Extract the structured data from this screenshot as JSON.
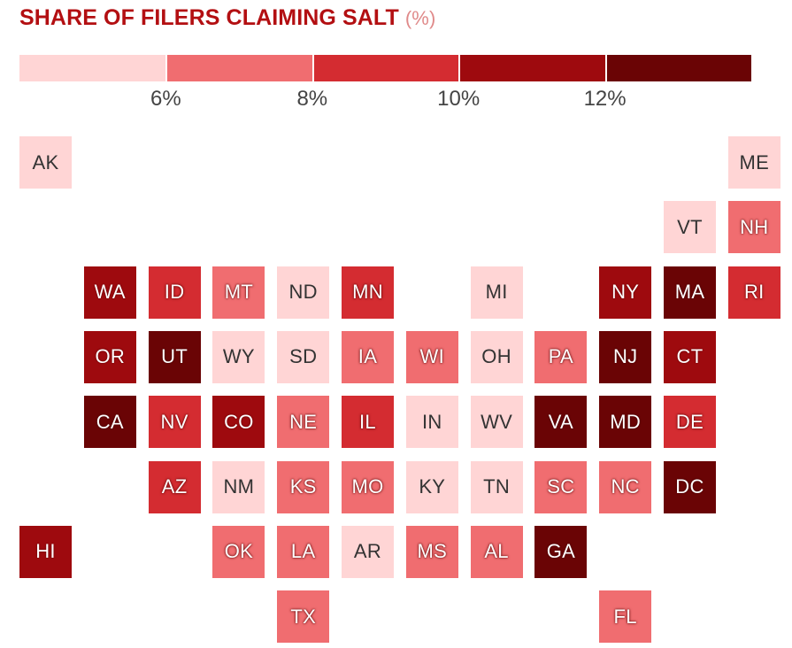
{
  "header": {
    "title": "SHARE OF FILERS CLAIMING SALT",
    "unit": "(%)"
  },
  "legend": {
    "colors": [
      "#ffd5d5",
      "#f06d70",
      "#d42c31",
      "#9e0a0e",
      "#6a0405"
    ],
    "ticks": [
      "6%",
      "8%",
      "10%",
      "12%"
    ]
  },
  "chart_data": {
    "type": "tile-map",
    "title": "SHARE OF FILERS CLAIMING SALT",
    "unit": "(%)",
    "bins": [
      {
        "label": "under 6%",
        "color": "#ffd5d5"
      },
      {
        "label": "6% to 8%",
        "color": "#f06d70"
      },
      {
        "label": "8% to 10%",
        "color": "#d42c31"
      },
      {
        "label": "10% to 12%",
        "color": "#9e0a0e"
      },
      {
        "label": "12% and above",
        "color": "#6a0405"
      }
    ],
    "states": [
      {
        "code": "AK",
        "bin": 0
      },
      {
        "code": "ME",
        "bin": 0
      },
      {
        "code": "VT",
        "bin": 0
      },
      {
        "code": "NH",
        "bin": 1
      },
      {
        "code": "WA",
        "bin": 3
      },
      {
        "code": "ID",
        "bin": 2
      },
      {
        "code": "MT",
        "bin": 1
      },
      {
        "code": "ND",
        "bin": 0
      },
      {
        "code": "MN",
        "bin": 2
      },
      {
        "code": "MI",
        "bin": 0
      },
      {
        "code": "NY",
        "bin": 3
      },
      {
        "code": "MA",
        "bin": 4
      },
      {
        "code": "RI",
        "bin": 2
      },
      {
        "code": "OR",
        "bin": 3
      },
      {
        "code": "UT",
        "bin": 4
      },
      {
        "code": "WY",
        "bin": 0
      },
      {
        "code": "SD",
        "bin": 0
      },
      {
        "code": "IA",
        "bin": 1
      },
      {
        "code": "WI",
        "bin": 1
      },
      {
        "code": "OH",
        "bin": 0
      },
      {
        "code": "PA",
        "bin": 1
      },
      {
        "code": "NJ",
        "bin": 4
      },
      {
        "code": "CT",
        "bin": 3
      },
      {
        "code": "CA",
        "bin": 4
      },
      {
        "code": "NV",
        "bin": 2
      },
      {
        "code": "CO",
        "bin": 3
      },
      {
        "code": "NE",
        "bin": 1
      },
      {
        "code": "IL",
        "bin": 2
      },
      {
        "code": "IN",
        "bin": 0
      },
      {
        "code": "WV",
        "bin": 0
      },
      {
        "code": "VA",
        "bin": 4
      },
      {
        "code": "MD",
        "bin": 4
      },
      {
        "code": "DE",
        "bin": 2
      },
      {
        "code": "AZ",
        "bin": 2
      },
      {
        "code": "NM",
        "bin": 0
      },
      {
        "code": "KS",
        "bin": 1
      },
      {
        "code": "MO",
        "bin": 1
      },
      {
        "code": "KY",
        "bin": 0
      },
      {
        "code": "TN",
        "bin": 0
      },
      {
        "code": "SC",
        "bin": 1
      },
      {
        "code": "NC",
        "bin": 1
      },
      {
        "code": "DC",
        "bin": 4
      },
      {
        "code": "HI",
        "bin": 3
      },
      {
        "code": "OK",
        "bin": 1
      },
      {
        "code": "LA",
        "bin": 1
      },
      {
        "code": "AR",
        "bin": 0
      },
      {
        "code": "MS",
        "bin": 1
      },
      {
        "code": "AL",
        "bin": 1
      },
      {
        "code": "GA",
        "bin": 4
      },
      {
        "code": "TX",
        "bin": 1
      },
      {
        "code": "FL",
        "bin": 1
      }
    ]
  }
}
